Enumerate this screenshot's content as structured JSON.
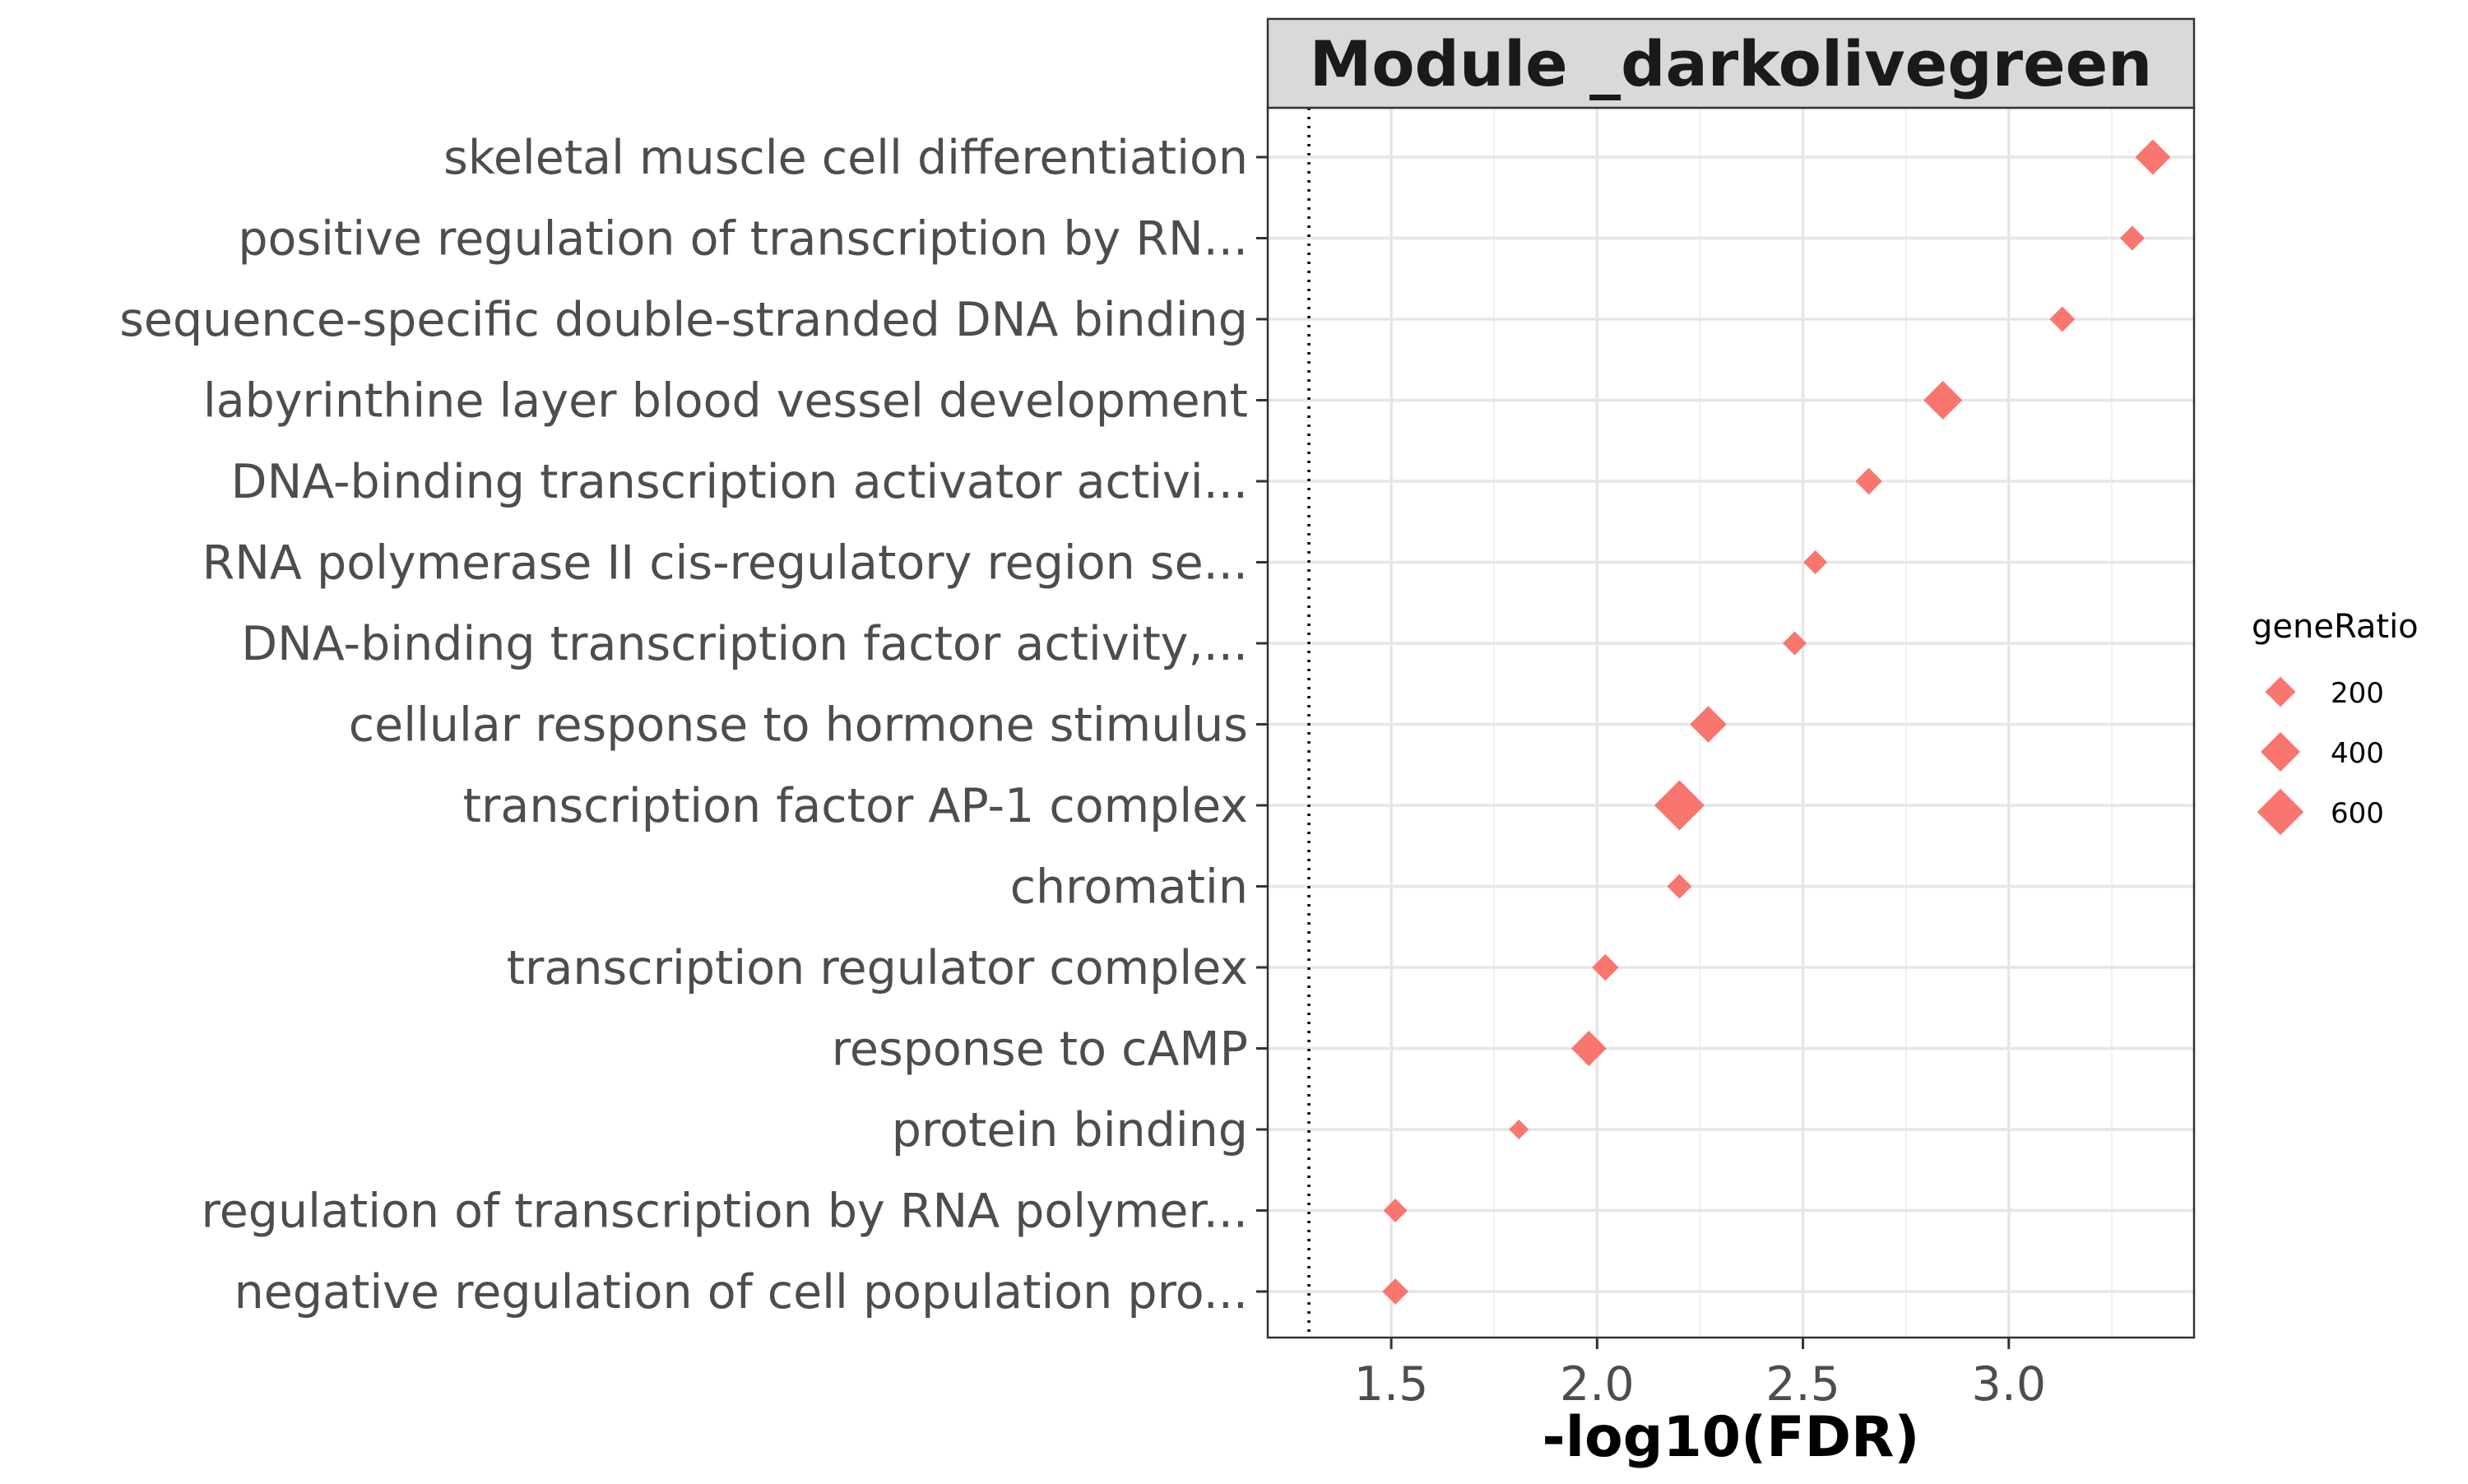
{
  "chart_data": {
    "type": "scatter",
    "title": "Module _darkolivegreen",
    "xlabel": "-log10(FDR)",
    "ylabel": "",
    "xlim": [
      1.2,
      3.45
    ],
    "xticks": [
      1.5,
      2.0,
      2.5,
      3.0
    ],
    "xtick_labels": [
      "1.5",
      "2.0",
      "2.5",
      "3.0"
    ],
    "reference_line_x": 1.3,
    "marker": "diamond",
    "color": "#F8766D",
    "grid": true,
    "legend": {
      "title": "geneRatio",
      "position": "right",
      "entries": [
        {
          "label": "200",
          "value": 200
        },
        {
          "label": "400",
          "value": 400
        },
        {
          "label": "600",
          "value": 600
        }
      ]
    },
    "points": [
      {
        "term": "skeletal muscle cell differentiation",
        "x": 3.35,
        "size": 300
      },
      {
        "term": "positive regulation of transcription by RN...",
        "x": 3.3,
        "size": 110
      },
      {
        "term": "sequence-specific double-stranded DNA binding",
        "x": 3.13,
        "size": 120
      },
      {
        "term": "labyrinthine layer blood vessel development",
        "x": 2.84,
        "size": 380
      },
      {
        "term": "DNA-binding transcription activator activi...",
        "x": 2.66,
        "size": 140
      },
      {
        "term": "RNA polymerase II cis-regulatory region se...",
        "x": 2.53,
        "size": 100
      },
      {
        "term": "DNA-binding transcription factor activity,...",
        "x": 2.48,
        "size": 100
      },
      {
        "term": "cellular response to hormone stimulus",
        "x": 2.27,
        "size": 330
      },
      {
        "term": "transcription factor AP-1 complex",
        "x": 2.2,
        "size": 720
      },
      {
        "term": "chromatin",
        "x": 2.2,
        "size": 110
      },
      {
        "term": "transcription regulator complex",
        "x": 2.02,
        "size": 140
      },
      {
        "term": "response to cAMP",
        "x": 1.98,
        "size": 300
      },
      {
        "term": "protein binding",
        "x": 1.81,
        "size": 55
      },
      {
        "term": "regulation of transcription by RNA polymer...",
        "x": 1.51,
        "size": 100
      },
      {
        "term": "negative regulation of cell population pro...",
        "x": 1.51,
        "size": 130
      }
    ]
  }
}
